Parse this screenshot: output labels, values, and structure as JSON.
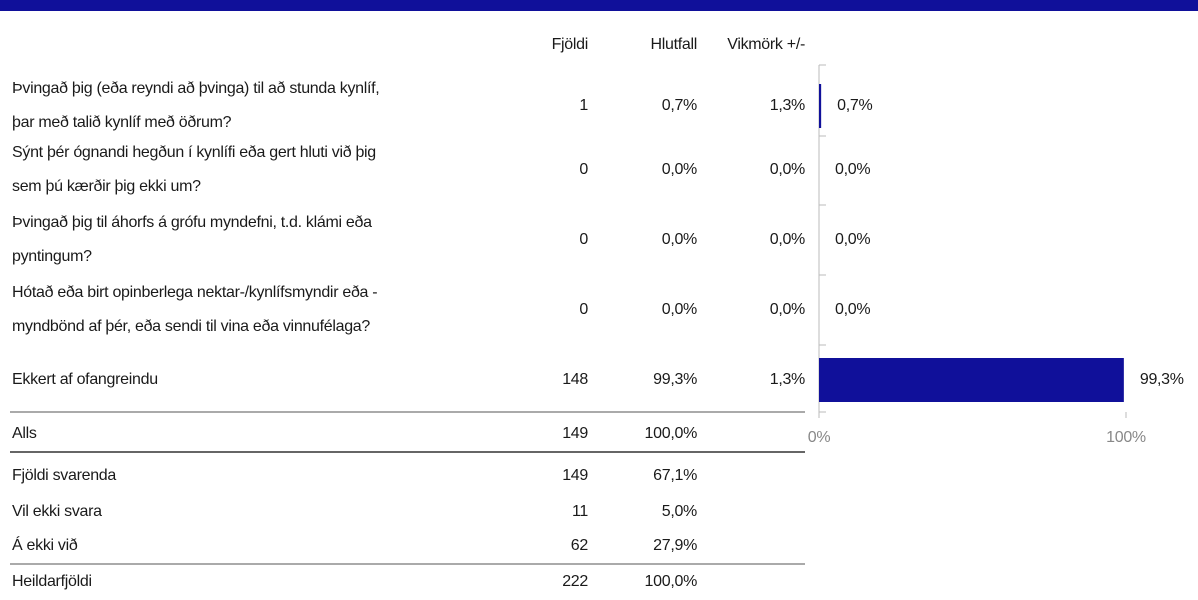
{
  "table": {
    "header": [
      "Fjöldi",
      "Hlutfall",
      "Vikmörk +/-"
    ],
    "rows": [
      {
        "label": [
          "Þvingað þig (eða reyndi að þvinga) til að stunda kynlíf,",
          "þar með talið kynlíf með öðrum?"
        ],
        "cells": [
          1,
          "0,7%",
          "1,3%"
        ]
      },
      {
        "label": [
          "Sýnt þér ógnandi hegðun í kynlífi eða gert hluti við þig",
          "sem þú kærðir þig ekki um?"
        ],
        "cells": [
          0,
          "0,0%",
          "0,0%"
        ]
      },
      {
        "label": [
          "Þvingað þig til áhorfs á grófu myndefni, t.d. klámi eða",
          "pyntingum?"
        ],
        "cells": [
          0,
          "0,0%",
          "0,0%"
        ]
      },
      {
        "label": [
          "Hótað eða birt opinberlega nektar-/kynlífsmyndir eða -",
          "myndbönd af þér, eða sendi til vina eða vinnufélaga?"
        ],
        "cells": [
          0,
          "0,0%",
          "0,0%"
        ]
      },
      {
        "label": [
          "Ekkert af ofangreindu"
        ],
        "cells": [
          148,
          "99,3%",
          "1,3%"
        ]
      }
    ],
    "total": {
      "label": "Alls",
      "cells": [
        149,
        "100,0%"
      ]
    },
    "footer": [
      {
        "label": "Fjöldi svarenda",
        "cells": [
          149,
          "67,1%"
        ]
      },
      {
        "label": "Vil ekki svara",
        "cells": [
          11,
          "5,0%"
        ]
      },
      {
        "label": "Á ekki við",
        "cells": [
          62,
          "27,9%"
        ]
      },
      {
        "label": "Heildarfjöldi",
        "cells": [
          222,
          "100,0%"
        ]
      }
    ]
  },
  "chart_data": {
    "type": "bar",
    "orientation": "horizontal",
    "color": "#10109a",
    "values": [
      0.7,
      0,
      0,
      0,
      99.3
    ],
    "value_labels": [
      "0,7%",
      "0,0%",
      "0,0%",
      "0,0%",
      "99,3%"
    ],
    "xlim": [
      0,
      100
    ],
    "xticks": [
      {
        "value": 0,
        "label": "0%"
      },
      {
        "value": 100,
        "label": "100%"
      }
    ]
  }
}
